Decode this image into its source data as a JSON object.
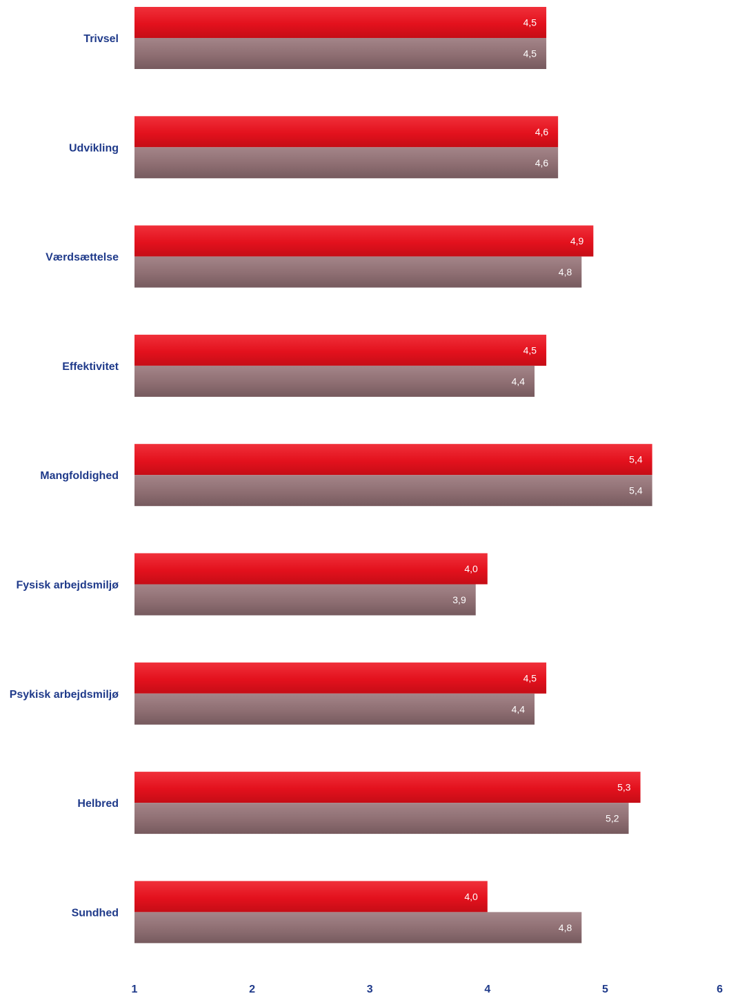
{
  "chart_data": {
    "type": "bar",
    "orientation": "horizontal",
    "categories": [
      "Trivsel",
      "Udvikling",
      "Værdsættelse",
      "Effektivitet",
      "Mangfoldighed",
      "Fysisk arbejdsmiljø",
      "Psykisk arbejdsmiljø",
      "Helbred",
      "Sundhed"
    ],
    "series": [
      {
        "values": [
          4.5,
          4.6,
          4.9,
          4.5,
          5.4,
          4.0,
          4.5,
          5.3,
          4.0
        ],
        "value_labels": [
          "4,5",
          "4,6",
          "4,9",
          "4,5",
          "5,4",
          "4,0",
          "4,5",
          "5,3",
          "4,0"
        ],
        "color": "#e3111d"
      },
      {
        "values": [
          4.5,
          4.6,
          4.8,
          4.4,
          5.4,
          3.9,
          4.4,
          5.2,
          4.8
        ],
        "value_labels": [
          "4,5",
          "4,6",
          "4,8",
          "4,4",
          "5,4",
          "3,9",
          "4,4",
          "5,2",
          "4,8"
        ],
        "color": "#8e6e72"
      }
    ],
    "xlim": [
      1,
      6
    ],
    "xticks": [
      "1",
      "2",
      "3",
      "4",
      "5",
      "6"
    ],
    "title": "",
    "xlabel": "",
    "ylabel": "",
    "grid": false,
    "legend": "none",
    "label_color": "#1f3a8a"
  }
}
